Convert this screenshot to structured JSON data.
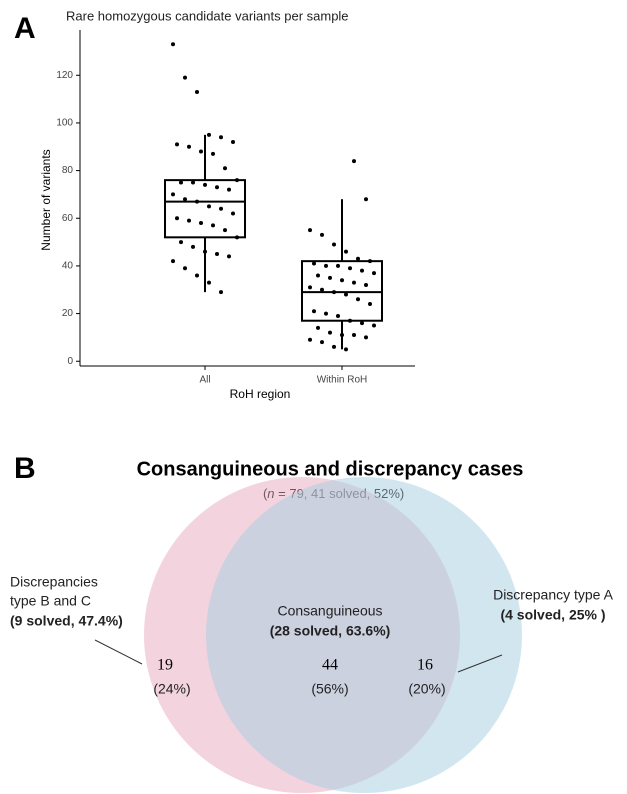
{
  "chart_data": [
    {
      "type": "box",
      "panel": "A",
      "title": "Rare homozygous candidate variants per sample",
      "y_label": "Number of variants",
      "x_label": "RoH region",
      "categories": [
        "All",
        "Within RoH"
      ],
      "boxes": [
        {
          "whislo": 29,
          "q1": 52,
          "med": 67,
          "q3": 76,
          "whishi": 95
        },
        {
          "whislo": 5,
          "q1": 17,
          "med": 29,
          "q3": 42,
          "whishi": 68
        }
      ],
      "points": [
        [
          133,
          119,
          113,
          95,
          94,
          92,
          91,
          90,
          88,
          87,
          81,
          76,
          75,
          75,
          74,
          73,
          72,
          70,
          68,
          67,
          65,
          64,
          62,
          60,
          59,
          58,
          57,
          55,
          52,
          50,
          48,
          46,
          45,
          44,
          42,
          39,
          36,
          33,
          29
        ],
        [
          84,
          68,
          55,
          53,
          49,
          46,
          43,
          42,
          41,
          40,
          40,
          39,
          38,
          37,
          36,
          35,
          34,
          33,
          32,
          31,
          30,
          29,
          28,
          26,
          24,
          21,
          20,
          19,
          17,
          16,
          15,
          14,
          12,
          11,
          11,
          10,
          9,
          8,
          6,
          5
        ]
      ],
      "ylim": [
        -2,
        139
      ],
      "yticks": [
        0,
        20,
        40,
        60,
        80,
        100,
        120
      ],
      "color": "#000000"
    },
    {
      "type": "venn",
      "panel": "B",
      "title": "Consanguineous and discrepancy cases",
      "subtitle": [
        "(",
        "n",
        " = 79, 41 solved, 52%)"
      ],
      "regions": [
        {
          "name": [
            "Discrepancies",
            "type B and C"
          ],
          "solved": "(9 solved, 47.4%)",
          "count": 19,
          "percent": {
            "value": 24,
            "label": "(24%)"
          }
        },
        {
          "name": [
            "Consanguineous"
          ],
          "solved": "(28 solved, 63.6%)",
          "count": 44,
          "percent": {
            "value": 56,
            "label": "(56%)"
          }
        },
        {
          "name": [
            "Discrepancy type A"
          ],
          "solved": "(4 solved, 25% )",
          "count": 16,
          "percent": {
            "value": 20,
            "label": "(20%)"
          }
        }
      ],
      "colors": [
        "#e7a9bd",
        "#a6cde2"
      ]
    }
  ]
}
